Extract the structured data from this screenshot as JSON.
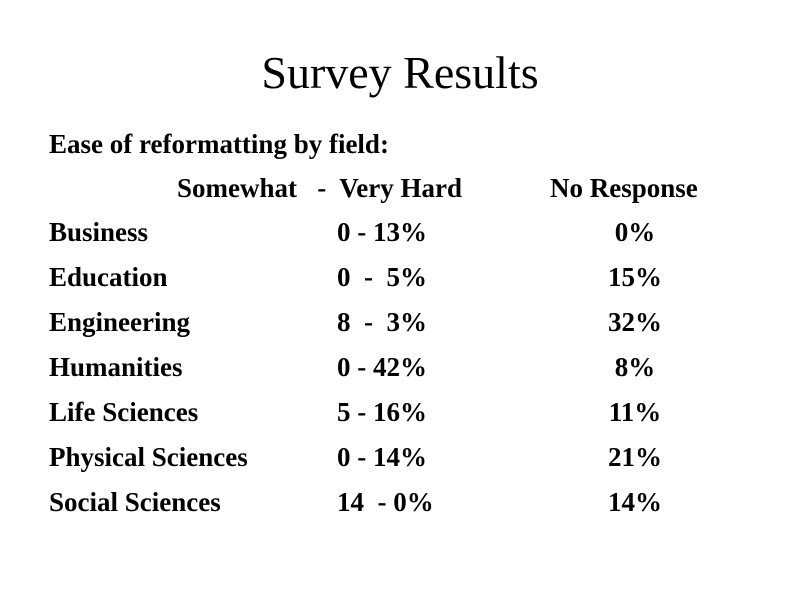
{
  "slide": {
    "title": "Survey Results",
    "subtitle": "Ease of reformatting by field:",
    "columns": {
      "range": "Somewhat   -  Very Hard",
      "none": "No Response"
    },
    "rows": [
      {
        "field": "Business",
        "range": "0 - 13%",
        "none": "0%"
      },
      {
        "field": "Education",
        "range": "0  -  5%",
        "none": "15%"
      },
      {
        "field": "Engineering",
        "range": "8  -  3%",
        "none": "32%"
      },
      {
        "field": "Humanities",
        "range": "0 - 42%",
        "none": "8%"
      },
      {
        "field": "Life Sciences",
        "range": "5 - 16%",
        "none": "11%"
      },
      {
        "field": "Physical Sciences",
        "range": "0 - 14%",
        "none": "21%"
      },
      {
        "field": "Social Sciences",
        "range": "14  - 0%",
        "none": "14%"
      }
    ]
  }
}
